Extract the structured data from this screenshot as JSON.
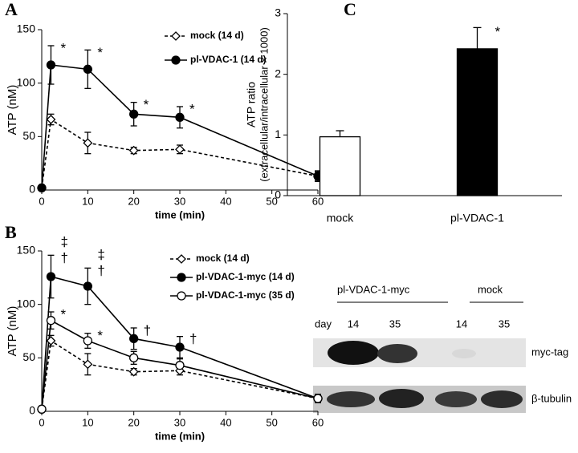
{
  "chart_data": [
    {
      "type": "line",
      "label": "A",
      "xlabel": "time (min)",
      "ylabel": "ATP (nM)",
      "x": [
        0,
        2,
        10,
        20,
        30,
        60
      ],
      "xlim": [
        0,
        60
      ],
      "xticks": [
        0,
        10,
        20,
        30,
        40,
        50,
        60
      ],
      "ylim": [
        0,
        150
      ],
      "yticks": [
        0,
        50,
        100,
        150
      ],
      "series": [
        {
          "name": "mock (14 d)",
          "color": "#000000",
          "marker": "diamond",
          "marker_fill": "#ffffff",
          "linestyle": "dashed",
          "values": [
            2,
            66,
            44,
            37,
            38,
            13
          ],
          "errors": [
            null,
            5,
            10,
            3,
            4,
            4
          ],
          "annotations": [
            null,
            null,
            null,
            null,
            null,
            null
          ]
        },
        {
          "name": "pl-VDAC-1 (14 d)",
          "color": "#000000",
          "marker": "circle",
          "marker_fill": "#000000",
          "linestyle": "solid",
          "values": [
            2,
            117,
            113,
            71,
            68,
            13
          ],
          "errors": [
            null,
            18,
            18,
            11,
            10,
            5
          ],
          "annotations": [
            null,
            [
              "*"
            ],
            [
              "*"
            ],
            [
              "*"
            ],
            [
              "*"
            ],
            null
          ]
        }
      ]
    },
    {
      "type": "line",
      "label": "B",
      "xlabel": "time (min)",
      "ylabel": "ATP (nM)",
      "x": [
        0,
        2,
        10,
        20,
        30,
        60
      ],
      "xlim": [
        0,
        60
      ],
      "xticks": [
        0,
        10,
        20,
        30,
        40,
        50,
        60
      ],
      "ylim": [
        0,
        150
      ],
      "yticks": [
        0,
        50,
        100,
        150
      ],
      "series": [
        {
          "name": "mock (14 d)",
          "color": "#000000",
          "marker": "diamond",
          "marker_fill": "#ffffff",
          "linestyle": "dashed",
          "values": [
            2,
            66,
            44,
            37,
            38,
            12
          ],
          "errors": [
            null,
            5,
            10,
            3,
            4,
            4
          ],
          "annotations": [
            null,
            null,
            null,
            null,
            null,
            null
          ]
        },
        {
          "name": "pl-VDAC-1-myc (14 d)",
          "color": "#000000",
          "marker": "circle",
          "marker_fill": "#000000",
          "linestyle": "solid",
          "values": [
            2,
            126,
            117,
            68,
            60,
            12
          ],
          "errors": [
            null,
            20,
            17,
            10,
            10,
            4
          ],
          "annotations": [
            null,
            [
              "‡",
              "†"
            ],
            [
              "‡",
              "†"
            ],
            [
              "†"
            ],
            [
              "†"
            ],
            null
          ]
        },
        {
          "name": "pl-VDAC-1-myc (35 d)",
          "color": "#000000",
          "marker": "circle",
          "marker_fill": "#ffffff",
          "linestyle": "solid",
          "values": [
            2,
            85,
            66,
            50,
            43,
            12
          ],
          "errors": [
            null,
            8,
            7,
            6,
            6,
            4
          ],
          "annotations": [
            null,
            [
              "*"
            ],
            [
              "*"
            ],
            null,
            null,
            null
          ]
        }
      ]
    },
    {
      "type": "bar",
      "label": "C",
      "ylabel": "ATP ratio",
      "ylabel2": "(extracellular/intracellular × 1000)",
      "categories": [
        "mock",
        "pl-VDAC-1"
      ],
      "values": [
        0.97,
        2.42
      ],
      "errors": [
        0.1,
        0.35
      ],
      "colors": [
        "#ffffff",
        "#000000"
      ],
      "annotations": [
        null,
        [
          "*"
        ]
      ],
      "ylim": [
        0,
        3
      ],
      "yticks": [
        0,
        1,
        2,
        3
      ]
    }
  ],
  "blot": {
    "group1": "pl-VDAC-1-myc",
    "group2": "mock",
    "day_label": "day",
    "days": [
      "14",
      "35",
      "14",
      "35"
    ],
    "rows": [
      "myc-tag",
      "β-tubulin"
    ]
  }
}
